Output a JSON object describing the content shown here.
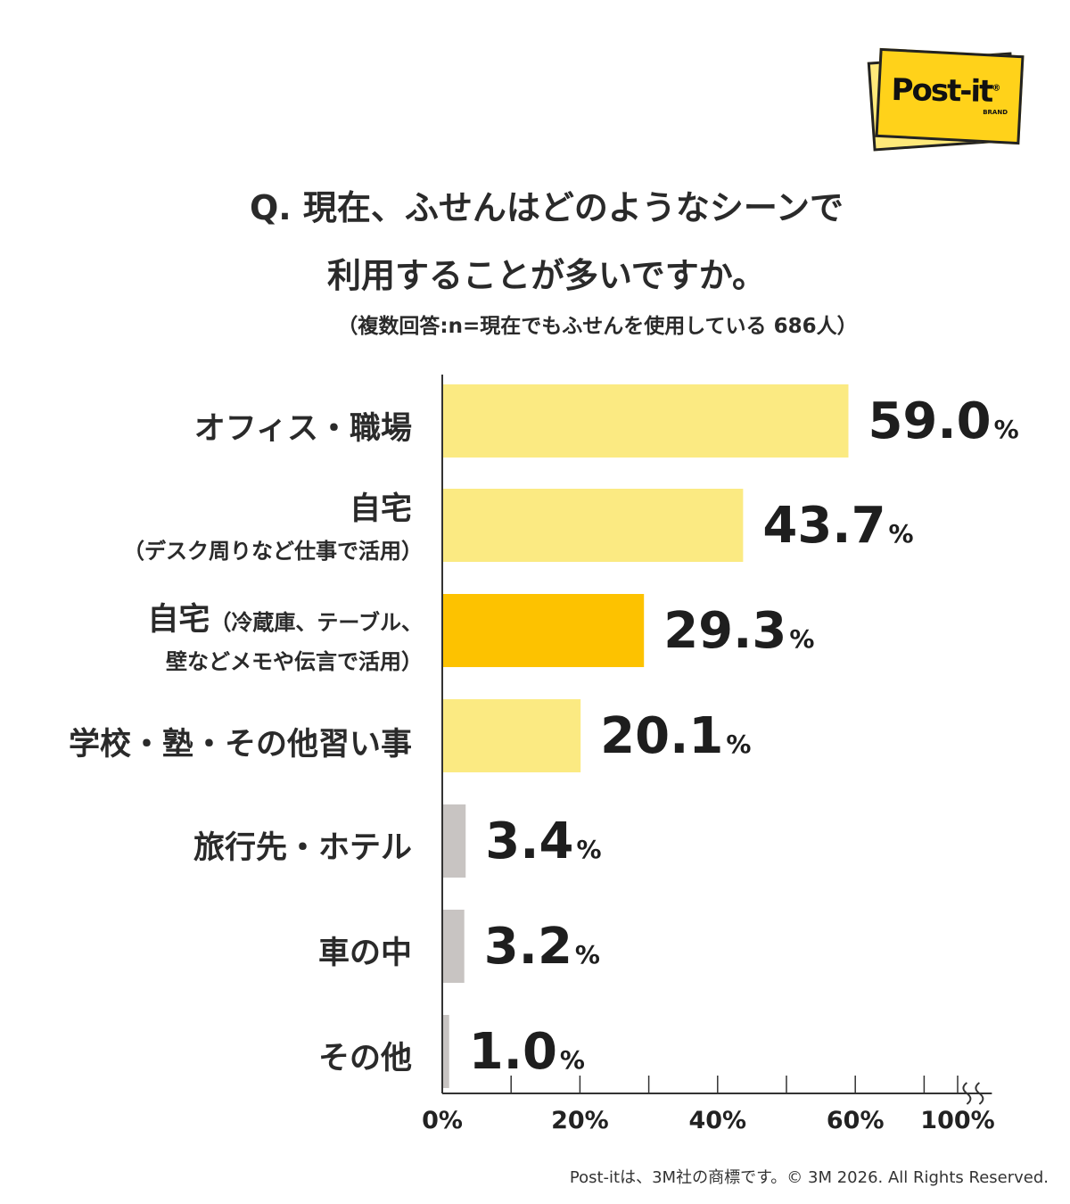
{
  "logo": {
    "text": "Post-it",
    "trademark": "®",
    "brand": "BRAND"
  },
  "chart_data": {
    "type": "bar",
    "orientation": "horizontal",
    "title": [
      "Q. 現在、ふせんはどのようなシーンで",
      "利用することが多いですか。"
    ],
    "subtitle": "（複数回答:n=現在でもふせんを使用している 686人）",
    "categories": [
      [
        "オフィス・職場"
      ],
      [
        "自宅",
        "（デスク周りなど仕事で活用）"
      ],
      [
        "自宅",
        "（冷蔵庫、テーブル、",
        "壁などメモや伝言で活用）"
      ],
      [
        "学校・塾・その他習い事"
      ],
      [
        "旅行先・ホテル"
      ],
      [
        "車の中"
      ],
      [
        "その他"
      ]
    ],
    "values": [
      59.0,
      43.7,
      29.3,
      20.1,
      3.4,
      3.2,
      1.0
    ],
    "value_labels": [
      "59.0",
      "43.7",
      "29.3",
      "20.1",
      "3.4",
      "3.2",
      "1.0"
    ],
    "value_unit": "%",
    "bar_colors": [
      "#fbea82",
      "#fbea82",
      "#fdc200",
      "#fbea82",
      "#c8c4c2",
      "#c8c4c2",
      "#c8c4c2"
    ],
    "xlim": [
      0,
      100
    ],
    "axis_break": {
      "from": 70,
      "to": 100
    },
    "x_ticks": [
      0,
      10,
      20,
      30,
      40,
      50,
      60,
      70,
      100
    ],
    "x_tick_labels": [
      {
        "value": 0,
        "label": "0%"
      },
      {
        "value": 20,
        "label": "20%"
      },
      {
        "value": 40,
        "label": "40%"
      },
      {
        "value": 60,
        "label": "60%"
      },
      {
        "value": 100,
        "label": "100%"
      }
    ],
    "grid": false
  },
  "footer": "Post-itは、3M社の商標です。© 3M 2026. All Rights Reserved."
}
